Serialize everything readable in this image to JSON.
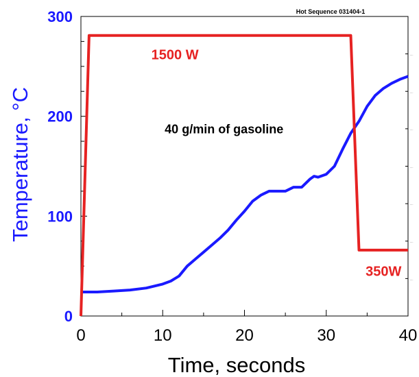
{
  "chart_data": {
    "type": "line",
    "title": "Hot Sequence 031404-1",
    "xlabel": "Time, seconds",
    "ylabel": "Temperature, °C",
    "xlim": [
      0,
      40
    ],
    "ylim": [
      0,
      300
    ],
    "x_ticks": [
      "0",
      "10",
      "20",
      "30",
      "40"
    ],
    "y_ticks": [
      "0",
      "100",
      "200",
      "300"
    ],
    "grid": false,
    "series": [
      {
        "color": "#1a1aff",
        "x": [
          0,
          2,
          4,
          6,
          8,
          10,
          11,
          12,
          13,
          14,
          15,
          16,
          17,
          18,
          19,
          20,
          21,
          22,
          23,
          24,
          25,
          26,
          27,
          28,
          28.5,
          29,
          30,
          31,
          32,
          33,
          34,
          35,
          36,
          37,
          38,
          39,
          40
        ],
        "y": [
          24,
          24,
          25,
          26,
          28,
          32,
          35,
          40,
          50,
          57,
          64,
          71,
          78,
          86,
          96,
          105,
          115,
          121,
          125,
          125,
          125,
          129,
          129,
          137,
          140,
          139,
          142,
          150,
          167,
          183,
          195,
          210,
          221,
          228,
          233,
          237,
          240
        ]
      },
      {
        "color": "#e62222",
        "x": [
          0,
          1,
          33,
          34,
          40
        ],
        "y": [
          0,
          281,
          281,
          66,
          66
        ]
      }
    ],
    "annotations": [
      {
        "text": "1500 W",
        "x": 11.5,
        "y": 257,
        "color": "#e62222"
      },
      {
        "text": "40 g/min of gasoline",
        "x": 17.5,
        "y": 183,
        "color": "#000000"
      },
      {
        "text": "350W",
        "x": 37,
        "y": 40,
        "color": "#e62222"
      }
    ],
    "right_axis_tick_labels": "small illegible labels along the right axis"
  }
}
